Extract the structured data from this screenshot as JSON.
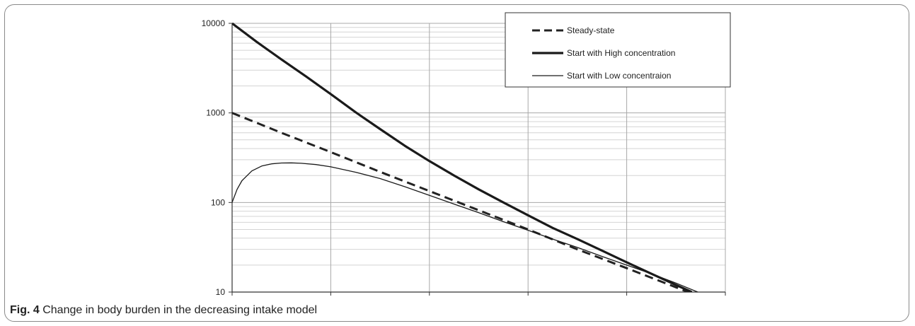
{
  "caption": {
    "label": "Fig. 4",
    "text": " Change in body burden in the decreasing intake model"
  },
  "chart_data": {
    "type": "line",
    "title": "",
    "xlabel": "",
    "ylabel": "",
    "yscale": "log",
    "ylim": [
      10,
      10000
    ],
    "xlim": [
      0,
      5
    ],
    "x_ticks_labeled": false,
    "y_ticks": [
      "10",
      "100",
      "1000",
      "10000"
    ],
    "grid": true,
    "legend_position": "top-right",
    "series": [
      {
        "name": "Steady-state",
        "style": "dashed",
        "x": [
          0,
          0.5,
          1,
          1.5,
          2,
          2.5,
          3,
          3.5,
          4,
          4.5,
          4.75
        ],
        "y": [
          1000,
          600,
          365,
          220,
          134,
          82,
          50,
          30,
          18.5,
          11.3,
          8.8
        ]
      },
      {
        "name": "Start with High concentration",
        "style": "thick",
        "x": [
          0,
          0.25,
          0.5,
          0.75,
          1,
          1.25,
          1.5,
          1.75,
          2,
          2.25,
          2.5,
          2.75,
          3,
          3.25,
          3.5,
          3.75,
          4,
          4.25,
          4.5,
          4.66
        ],
        "y": [
          10000,
          6200,
          3950,
          2550,
          1620,
          1020,
          660,
          430,
          290,
          200,
          140,
          100,
          72,
          52,
          39,
          29,
          21.5,
          16,
          12,
          10
        ]
      },
      {
        "name": "Start with Low concentraion",
        "style": "thin",
        "x": [
          0,
          0.05,
          0.1,
          0.2,
          0.3,
          0.4,
          0.5,
          0.6,
          0.7,
          0.85,
          1,
          1.25,
          1.5,
          1.75,
          2,
          2.25,
          2.5,
          2.75,
          3,
          3.25,
          3.5,
          3.75,
          4,
          4.25,
          4.5,
          4.72
        ],
        "y": [
          100,
          140,
          175,
          225,
          255,
          270,
          276,
          277,
          274,
          265,
          250,
          218,
          185,
          150,
          120,
          96,
          77,
          61,
          49,
          39,
          31.5,
          25,
          20,
          16,
          12.6,
          10
        ]
      }
    ]
  }
}
